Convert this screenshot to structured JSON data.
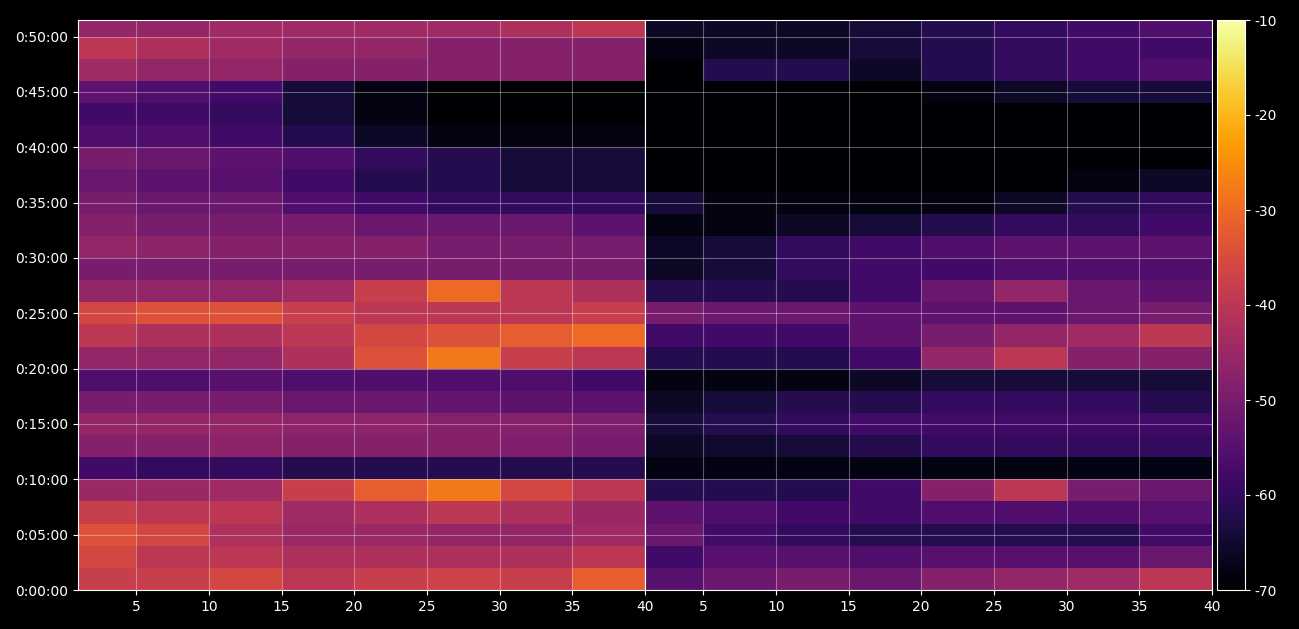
{
  "chart_data": {
    "type": "heatmap",
    "grid": true,
    "xlim": [
      1,
      40
    ],
    "xticks": [
      5,
      10,
      15,
      20,
      25,
      30,
      35,
      40
    ],
    "ylim": [
      0,
      3090
    ],
    "yticks": [
      {
        "value": 0,
        "label": "0:00:00"
      },
      {
        "value": 300,
        "label": "0:05:00"
      },
      {
        "value": 600,
        "label": "0:10:00"
      },
      {
        "value": 900,
        "label": "0:15:00"
      },
      {
        "value": 1200,
        "label": "0:20:00"
      },
      {
        "value": 1500,
        "label": "0:25:00"
      },
      {
        "value": 1800,
        "label": "0:30:00"
      },
      {
        "value": 2100,
        "label": "0:35:00"
      },
      {
        "value": 2400,
        "label": "0:40:00"
      },
      {
        "value": 2700,
        "label": "0:45:00"
      },
      {
        "value": 3000,
        "label": "0:50:00"
      }
    ],
    "colorbar": {
      "range": [
        -70,
        -10
      ],
      "ticks": [
        -70,
        -60,
        -50,
        -40,
        -30,
        -20,
        -10
      ]
    },
    "x_edges": [
      1,
      5,
      10,
      15,
      20,
      25,
      30,
      35,
      40
    ],
    "y_edges": [
      0,
      120,
      240,
      360,
      480,
      600,
      720,
      840,
      960,
      1080,
      1200,
      1320,
      1440,
      1560,
      1680,
      1800,
      1920,
      2040,
      2160,
      2280,
      2400,
      2520,
      2640,
      2760,
      2880,
      3000,
      3090
    ],
    "panels": [
      {
        "values": [
          [
            -38,
            -38,
            -36,
            -40,
            -38,
            -37,
            -38,
            -32
          ],
          [
            -36,
            -40,
            -40,
            -42,
            -42,
            -42,
            -42,
            -40
          ],
          [
            -34,
            -36,
            -42,
            -45,
            -45,
            -46,
            -46,
            -44
          ],
          [
            -38,
            -40,
            -40,
            -44,
            -42,
            -40,
            -42,
            -45
          ],
          [
            -45,
            -45,
            -44,
            -38,
            -32,
            -28,
            -36,
            -40
          ],
          [
            -58,
            -60,
            -60,
            -62,
            -62,
            -62,
            -62,
            -62
          ],
          [
            -48,
            -48,
            -47,
            -48,
            -48,
            -48,
            -49,
            -50
          ],
          [
            -46,
            -46,
            -46,
            -47,
            -47,
            -48,
            -48,
            -49
          ],
          [
            -50,
            -50,
            -50,
            -52,
            -52,
            -53,
            -54,
            -54
          ],
          [
            -56,
            -56,
            -55,
            -56,
            -56,
            -56,
            -56,
            -58
          ],
          [
            -46,
            -46,
            -46,
            -42,
            -34,
            -28,
            -38,
            -40
          ],
          [
            -40,
            -42,
            -42,
            -40,
            -36,
            -34,
            -32,
            -30
          ],
          [
            -36,
            -34,
            -34,
            -38,
            -40,
            -40,
            -40,
            -38
          ],
          [
            -46,
            -46,
            -46,
            -44,
            -38,
            -30,
            -40,
            -42
          ],
          [
            -50,
            -50,
            -50,
            -50,
            -50,
            -50,
            -50,
            -50
          ],
          [
            -46,
            -47,
            -48,
            -48,
            -48,
            -50,
            -50,
            -50
          ],
          [
            -48,
            -50,
            -50,
            -50,
            -52,
            -52,
            -52,
            -54
          ],
          [
            -50,
            -52,
            -52,
            -56,
            -58,
            -60,
            -60,
            -60
          ],
          [
            -52,
            -54,
            -55,
            -58,
            -62,
            -62,
            -64,
            -64
          ],
          [
            -50,
            -52,
            -54,
            -56,
            -60,
            -62,
            -64,
            -64
          ],
          [
            -56,
            -56,
            -58,
            -62,
            -66,
            -68,
            -68,
            -68
          ],
          [
            -58,
            -58,
            -60,
            -64,
            -68,
            -70,
            -70,
            -70
          ],
          [
            -54,
            -56,
            -58,
            -64,
            -68,
            -70,
            -70,
            -70
          ],
          [
            -44,
            -46,
            -46,
            -48,
            -48,
            -48,
            -48,
            -48
          ],
          [
            -40,
            -42,
            -44,
            -46,
            -46,
            -48,
            -48,
            -48
          ],
          [
            -46,
            -46,
            -44,
            -44,
            -44,
            -44,
            -42,
            -40
          ]
        ]
      },
      {
        "values": [
          [
            -55,
            -52,
            -50,
            -52,
            -48,
            -46,
            -44,
            -40
          ],
          [
            -58,
            -55,
            -55,
            -56,
            -55,
            -55,
            -55,
            -52
          ],
          [
            -52,
            -58,
            -60,
            -62,
            -62,
            -62,
            -62,
            -58
          ],
          [
            -54,
            -56,
            -58,
            -58,
            -56,
            -56,
            -56,
            -55
          ],
          [
            -62,
            -62,
            -62,
            -58,
            -48,
            -40,
            -50,
            -52
          ],
          [
            -68,
            -68,
            -68,
            -68,
            -68,
            -68,
            -68,
            -68
          ],
          [
            -66,
            -65,
            -64,
            -62,
            -60,
            -60,
            -60,
            -60
          ],
          [
            -64,
            -62,
            -60,
            -58,
            -58,
            -58,
            -58,
            -58
          ],
          [
            -66,
            -64,
            -62,
            -62,
            -60,
            -60,
            -60,
            -62
          ],
          [
            -68,
            -68,
            -68,
            -66,
            -64,
            -64,
            -64,
            -64
          ],
          [
            -62,
            -62,
            -62,
            -58,
            -46,
            -40,
            -48,
            -48
          ],
          [
            -58,
            -58,
            -58,
            -54,
            -50,
            -46,
            -44,
            -40
          ],
          [
            -50,
            -52,
            -52,
            -54,
            -54,
            -54,
            -52,
            -50
          ],
          [
            -62,
            -62,
            -62,
            -58,
            -52,
            -46,
            -52,
            -54
          ],
          [
            -66,
            -64,
            -60,
            -58,
            -58,
            -56,
            -56,
            -56
          ],
          [
            -66,
            -64,
            -60,
            -58,
            -56,
            -54,
            -54,
            -54
          ],
          [
            -68,
            -68,
            -66,
            -64,
            -62,
            -60,
            -60,
            -58
          ],
          [
            -64,
            -68,
            -68,
            -68,
            -68,
            -66,
            -62,
            -60
          ],
          [
            -70,
            -70,
            -70,
            -70,
            -70,
            -70,
            -68,
            -66
          ],
          [
            -70,
            -70,
            -70,
            -70,
            -70,
            -70,
            -70,
            -70
          ],
          [
            -70,
            -70,
            -70,
            -70,
            -70,
            -70,
            -70,
            -70
          ],
          [
            -70,
            -70,
            -70,
            -70,
            -70,
            -70,
            -70,
            -70
          ],
          [
            -70,
            -70,
            -70,
            -70,
            -68,
            -66,
            -64,
            -64
          ],
          [
            -70,
            -62,
            -62,
            -66,
            -62,
            -60,
            -58,
            -56
          ],
          [
            -68,
            -66,
            -66,
            -64,
            -62,
            -60,
            -58,
            -58
          ],
          [
            -66,
            -66,
            -66,
            -64,
            -62,
            -60,
            -58,
            -56
          ]
        ]
      }
    ]
  }
}
